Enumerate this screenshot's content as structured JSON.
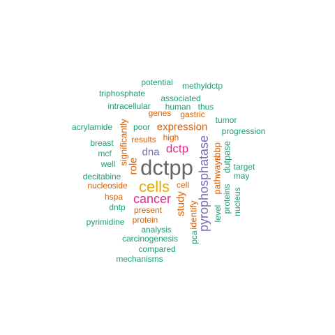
{
  "palette": {
    "teal": "#1b9e77",
    "orange": "#d95f02",
    "purple": "#7570b3",
    "magenta": "#e7298a",
    "olive": "#66a61e",
    "gold": "#e6ab02",
    "brown": "#a6761d",
    "gray": "#666666"
  },
  "words": [
    {
      "text": "dctpp",
      "color": "gray",
      "rotated": false
    },
    {
      "text": "cells",
      "color": "gold",
      "rotated": false
    },
    {
      "text": "cancer",
      "color": "magenta",
      "rotated": false
    },
    {
      "text": "pyrophosphatase",
      "color": "purple",
      "rotated": true
    },
    {
      "text": "dctp",
      "color": "magenta",
      "rotated": false
    },
    {
      "text": "expression",
      "color": "orange",
      "rotated": false
    },
    {
      "text": "dna",
      "color": "purple",
      "rotated": false
    },
    {
      "text": "study",
      "color": "orange",
      "rotated": true
    },
    {
      "text": "role",
      "color": "orange",
      "rotated": true
    },
    {
      "text": "significantly",
      "color": "orange",
      "rotated": true
    },
    {
      "text": "pathways",
      "color": "orange",
      "rotated": true
    },
    {
      "text": "rbbp",
      "color": "orange",
      "rotated": true
    },
    {
      "text": "dutpase",
      "color": "teal",
      "rotated": true
    },
    {
      "text": "identify",
      "color": "orange",
      "rotated": true
    },
    {
      "text": "level",
      "color": "teal",
      "rotated": true
    },
    {
      "text": "proteins",
      "color": "teal",
      "rotated": true
    },
    {
      "text": "nucleus",
      "color": "teal",
      "rotated": true
    },
    {
      "text": "pca",
      "color": "teal",
      "rotated": true
    },
    {
      "text": "potential",
      "color": "teal",
      "rotated": false
    },
    {
      "text": "methyldctp",
      "color": "teal",
      "rotated": false
    },
    {
      "text": "triphosphate",
      "color": "teal",
      "rotated": false
    },
    {
      "text": "associated",
      "color": "teal",
      "rotated": false
    },
    {
      "text": "intracellular",
      "color": "teal",
      "rotated": false
    },
    {
      "text": "human",
      "color": "teal",
      "rotated": false
    },
    {
      "text": "thus",
      "color": "teal",
      "rotated": false
    },
    {
      "text": "genes",
      "color": "orange",
      "rotated": false
    },
    {
      "text": "gastric",
      "color": "orange",
      "rotated": false
    },
    {
      "text": "tumor",
      "color": "teal",
      "rotated": false
    },
    {
      "text": "acrylamide",
      "color": "teal",
      "rotated": false
    },
    {
      "text": "poor",
      "color": "teal",
      "rotated": false
    },
    {
      "text": "progression",
      "color": "teal",
      "rotated": false
    },
    {
      "text": "results",
      "color": "orange",
      "rotated": false
    },
    {
      "text": "high",
      "color": "orange",
      "rotated": false
    },
    {
      "text": "breast",
      "color": "teal",
      "rotated": false
    },
    {
      "text": "mcf",
      "color": "teal",
      "rotated": false
    },
    {
      "text": "well",
      "color": "teal",
      "rotated": false
    },
    {
      "text": "target",
      "color": "teal",
      "rotated": false
    },
    {
      "text": "may",
      "color": "teal",
      "rotated": false
    },
    {
      "text": "decitabine",
      "color": "teal",
      "rotated": false
    },
    {
      "text": "nucleoside",
      "color": "orange",
      "rotated": false
    },
    {
      "text": "cell",
      "color": "orange",
      "rotated": false
    },
    {
      "text": "hspa",
      "color": "orange",
      "rotated": false
    },
    {
      "text": "dntp",
      "color": "teal",
      "rotated": false
    },
    {
      "text": "present",
      "color": "orange",
      "rotated": false
    },
    {
      "text": "protein",
      "color": "orange",
      "rotated": false
    },
    {
      "text": "pyrimidine",
      "color": "teal",
      "rotated": false
    },
    {
      "text": "analysis",
      "color": "teal",
      "rotated": false
    },
    {
      "text": "carcinogenesis",
      "color": "teal",
      "rotated": false
    },
    {
      "text": "compared",
      "color": "teal",
      "rotated": false
    },
    {
      "text": "mechanisms",
      "color": "teal",
      "rotated": false
    }
  ]
}
